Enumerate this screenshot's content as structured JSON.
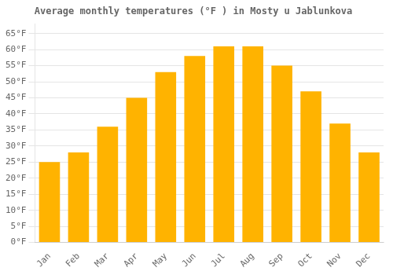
{
  "chart_data": {
    "type": "bar",
    "title": "Average monthly temperatures (°F ) in Mosty u Jablunkova",
    "categories": [
      "Jan",
      "Feb",
      "Mar",
      "Apr",
      "May",
      "Jun",
      "Jul",
      "Aug",
      "Sep",
      "Oct",
      "Nov",
      "Dec"
    ],
    "values": [
      25,
      28,
      36,
      45,
      53,
      58,
      61,
      61,
      55,
      47,
      37,
      28
    ],
    "color": "#FFB300",
    "ylim": [
      0,
      68
    ],
    "yticks": [
      {
        "value": 0,
        "label": "0°F"
      },
      {
        "value": 5,
        "label": "5°F"
      },
      {
        "value": 10,
        "label": "10°F"
      },
      {
        "value": 15,
        "label": "15°F"
      },
      {
        "value": 20,
        "label": "20°F"
      },
      {
        "value": 25,
        "label": "25°F"
      },
      {
        "value": 30,
        "label": "30°F"
      },
      {
        "value": 35,
        "label": "35°F"
      },
      {
        "value": 40,
        "label": "40°F"
      },
      {
        "value": 45,
        "label": "45°F"
      },
      {
        "value": 50,
        "label": "50°F"
      },
      {
        "value": 55,
        "label": "55°F"
      },
      {
        "value": 60,
        "label": "60°F"
      },
      {
        "value": 65,
        "label": "65°F"
      }
    ],
    "grid": true
  }
}
